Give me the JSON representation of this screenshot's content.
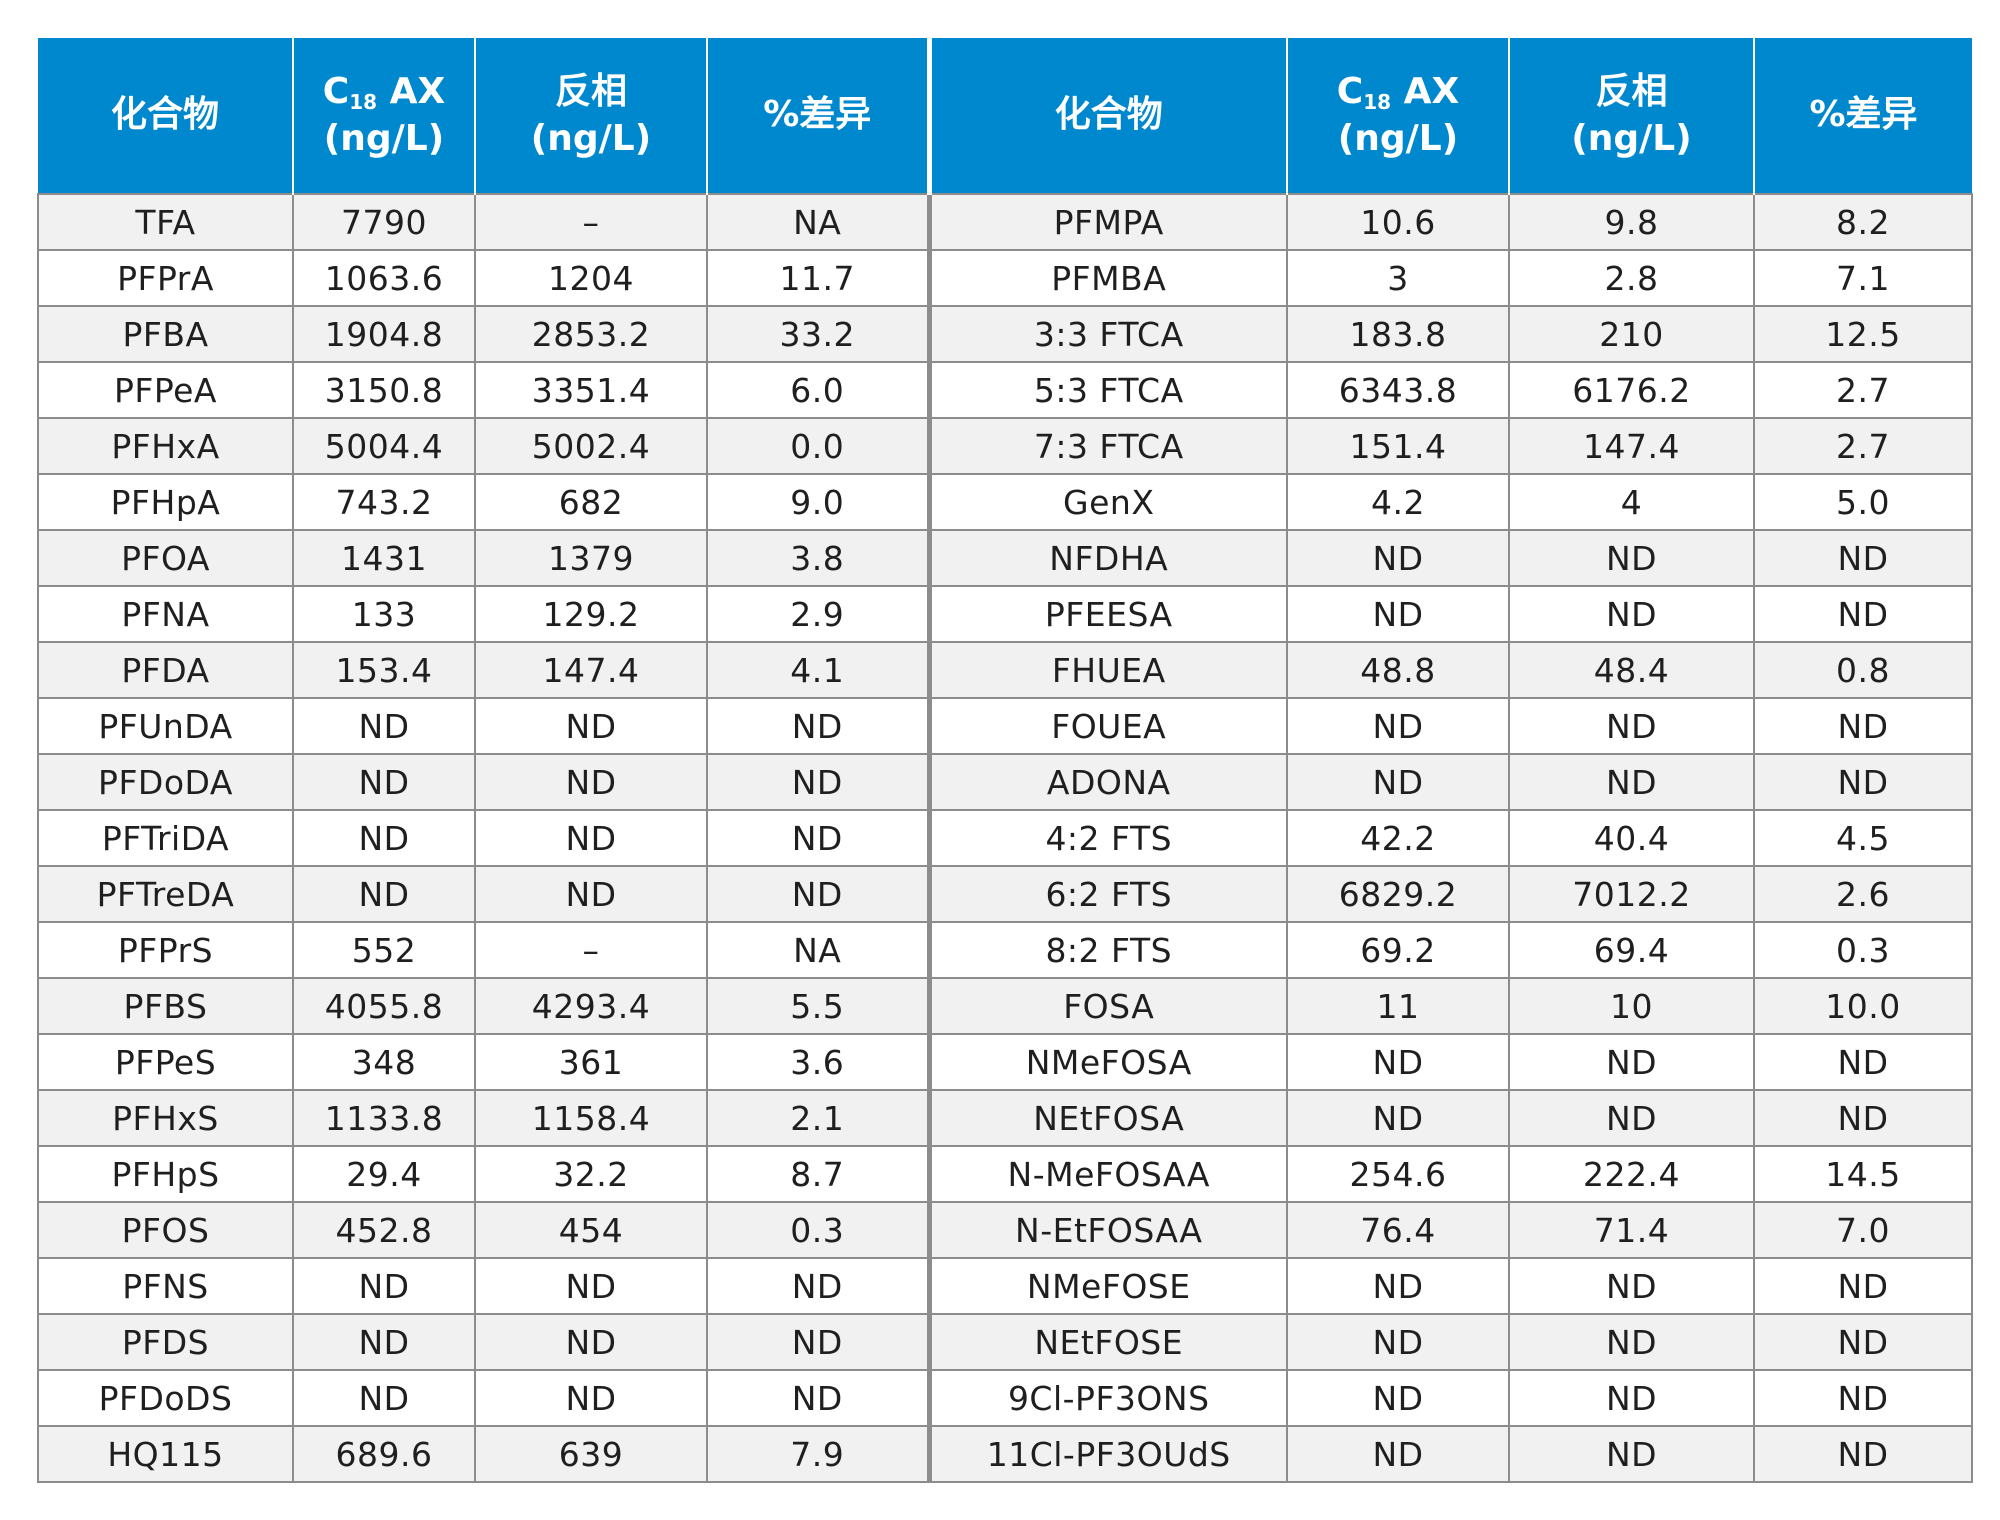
{
  "headers": {
    "compound": "化合物",
    "c18_main": "C",
    "c18_sub": "18",
    "c18_suffix": " AX",
    "unit": "(ng/L)",
    "reverse": "反相",
    "diff": "%差异"
  },
  "rows": [
    {
      "left": [
        "TFA",
        "7790",
        "–",
        "NA"
      ],
      "right": [
        "PFMPA",
        "10.6",
        "9.8",
        "8.2"
      ]
    },
    {
      "left": [
        "PFPrA",
        "1063.6",
        "1204",
        "11.7"
      ],
      "right": [
        "PFMBA",
        "3",
        "2.8",
        "7.1"
      ]
    },
    {
      "left": [
        "PFBA",
        "1904.8",
        "2853.2",
        "33.2"
      ],
      "right": [
        "3:3 FTCA",
        "183.8",
        "210",
        "12.5"
      ]
    },
    {
      "left": [
        "PFPeA",
        "3150.8",
        "3351.4",
        "6.0"
      ],
      "right": [
        "5:3 FTCA",
        "6343.8",
        "6176.2",
        "2.7"
      ]
    },
    {
      "left": [
        "PFHxA",
        "5004.4",
        "5002.4",
        "0.0"
      ],
      "right": [
        "7:3 FTCA",
        "151.4",
        "147.4",
        "2.7"
      ]
    },
    {
      "left": [
        "PFHpA",
        "743.2",
        "682",
        "9.0"
      ],
      "right": [
        "GenX",
        "4.2",
        "4",
        "5.0"
      ]
    },
    {
      "left": [
        "PFOA",
        "1431",
        "1379",
        "3.8"
      ],
      "right": [
        "NFDHA",
        "ND",
        "ND",
        "ND"
      ]
    },
    {
      "left": [
        "PFNA",
        "133",
        "129.2",
        "2.9"
      ],
      "right": [
        "PFEESA",
        "ND",
        "ND",
        "ND"
      ]
    },
    {
      "left": [
        "PFDA",
        "153.4",
        "147.4",
        "4.1"
      ],
      "right": [
        "FHUEA",
        "48.8",
        "48.4",
        "0.8"
      ]
    },
    {
      "left": [
        "PFUnDA",
        "ND",
        "ND",
        "ND"
      ],
      "right": [
        "FOUEA",
        "ND",
        "ND",
        "ND"
      ]
    },
    {
      "left": [
        "PFDoDA",
        "ND",
        "ND",
        "ND"
      ],
      "right": [
        "ADONA",
        "ND",
        "ND",
        "ND"
      ]
    },
    {
      "left": [
        "PFTriDA",
        "ND",
        "ND",
        "ND"
      ],
      "right": [
        "4:2 FTS",
        "42.2",
        "40.4",
        "4.5"
      ]
    },
    {
      "left": [
        "PFTreDA",
        "ND",
        "ND",
        "ND"
      ],
      "right": [
        "6:2 FTS",
        "6829.2",
        "7012.2",
        "2.6"
      ]
    },
    {
      "left": [
        "PFPrS",
        "552",
        "–",
        "NA"
      ],
      "right": [
        "8:2 FTS",
        "69.2",
        "69.4",
        "0.3"
      ]
    },
    {
      "left": [
        "PFBS",
        "4055.8",
        "4293.4",
        "5.5"
      ],
      "right": [
        "FOSA",
        "11",
        "10",
        "10.0"
      ]
    },
    {
      "left": [
        "PFPeS",
        "348",
        "361",
        "3.6"
      ],
      "right": [
        "NMeFOSA",
        "ND",
        "ND",
        "ND"
      ]
    },
    {
      "left": [
        "PFHxS",
        "1133.8",
        "1158.4",
        "2.1"
      ],
      "right": [
        "NEtFOSA",
        "ND",
        "ND",
        "ND"
      ]
    },
    {
      "left": [
        "PFHpS",
        "29.4",
        "32.2",
        "8.7"
      ],
      "right": [
        "N-MeFOSAA",
        "254.6",
        "222.4",
        "14.5"
      ]
    },
    {
      "left": [
        "PFOS",
        "452.8",
        "454",
        "0.3"
      ],
      "right": [
        "N-EtFOSAA",
        "76.4",
        "71.4",
        "7.0"
      ]
    },
    {
      "left": [
        "PFNS",
        "ND",
        "ND",
        "ND"
      ],
      "right": [
        "NMeFOSE",
        "ND",
        "ND",
        "ND"
      ]
    },
    {
      "left": [
        "PFDS",
        "ND",
        "ND",
        "ND"
      ],
      "right": [
        "NEtFOSE",
        "ND",
        "ND",
        "ND"
      ]
    },
    {
      "left": [
        "PFDoDS",
        "ND",
        "ND",
        "ND"
      ],
      "right": [
        "9Cl-PF3ONS",
        "ND",
        "ND",
        "ND"
      ]
    },
    {
      "left": [
        "HQ115",
        "689.6",
        "639",
        "7.9"
      ],
      "right": [
        "11Cl-PF3OUdS",
        "ND",
        "ND",
        "ND"
      ]
    }
  ],
  "colors": {
    "header_bg": "#0088cf",
    "header_text": "#ffffff",
    "row_alt_bg": "#f1f1f2",
    "border": "#8c8c8c"
  }
}
